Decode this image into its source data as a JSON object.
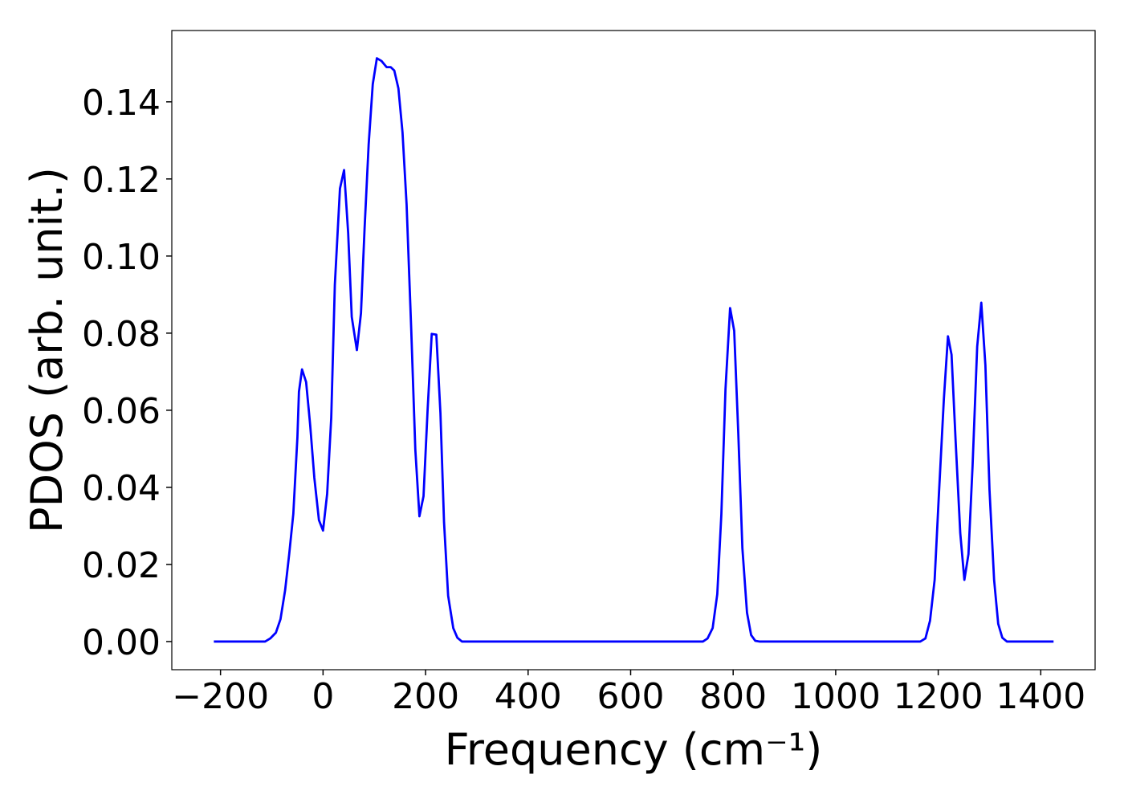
{
  "chart_data": {
    "type": "line",
    "x_label": "Frequency (cm⁻¹)",
    "y_label": "PDOS (arb. unit.)",
    "x": [
      -213,
      -113,
      -103,
      -92,
      -83,
      -74,
      -66,
      -58,
      -50,
      -47,
      -41,
      -33,
      -25,
      -17,
      -8,
      0,
      8,
      16,
      23,
      33,
      41,
      49,
      56,
      66,
      74,
      81,
      89,
      97,
      105,
      114,
      124,
      132,
      139,
      147,
      155,
      163,
      172,
      180,
      188,
      196,
      204,
      212,
      221,
      229,
      236,
      244,
      254,
      262,
      271,
      741,
      750,
      760,
      769,
      777,
      785,
      794,
      802,
      810,
      818,
      827,
      835,
      843,
      852,
      1165,
      1175,
      1184,
      1193,
      1201,
      1211,
      1219,
      1226,
      1234,
      1243,
      1251,
      1259,
      1267,
      1276,
      1284,
      1292,
      1300,
      1309,
      1317,
      1325,
      1334,
      1425
    ],
    "series": [
      {
        "color": "#0000ff",
        "values": [
          0,
          0,
          0.0008,
          0.0023,
          0.0058,
          0.0133,
          0.0227,
          0.0331,
          0.053,
          0.0648,
          0.0706,
          0.0673,
          0.056,
          0.0425,
          0.0315,
          0.0288,
          0.0383,
          0.0581,
          0.0925,
          0.1175,
          0.1223,
          0.106,
          0.0842,
          0.0756,
          0.0852,
          0.1071,
          0.129,
          0.1446,
          0.1513,
          0.1506,
          0.149,
          0.149,
          0.1481,
          0.1435,
          0.1321,
          0.1133,
          0.081,
          0.0498,
          0.0325,
          0.0377,
          0.0602,
          0.0798,
          0.0796,
          0.0592,
          0.031,
          0.0119,
          0.0035,
          0.001,
          0,
          0,
          0.0008,
          0.0035,
          0.0123,
          0.0331,
          0.0654,
          0.0865,
          0.0806,
          0.054,
          0.0242,
          0.0075,
          0.0017,
          0.0002,
          0,
          0,
          0.0008,
          0.0054,
          0.016,
          0.0373,
          0.0629,
          0.0792,
          0.0744,
          0.0519,
          0.0281,
          0.016,
          0.0227,
          0.0456,
          0.0765,
          0.0879,
          0.0717,
          0.0394,
          0.016,
          0.0046,
          0.001,
          0,
          0
        ]
      }
    ],
    "xlim": [
      -295,
      1506
    ],
    "ylim": [
      -0.0073,
      0.1585
    ],
    "xticks": [
      {
        "value": -200,
        "label": "−200"
      },
      0,
      200,
      400,
      600,
      800,
      1000,
      1200,
      1400
    ],
    "yticks": [
      {
        "value": 0,
        "label": "0.00"
      },
      0.02,
      0.04,
      0.06,
      0.08,
      {
        "value": 0.1,
        "label": "0.10"
      },
      0.12,
      0.14
    ],
    "grid": false
  }
}
